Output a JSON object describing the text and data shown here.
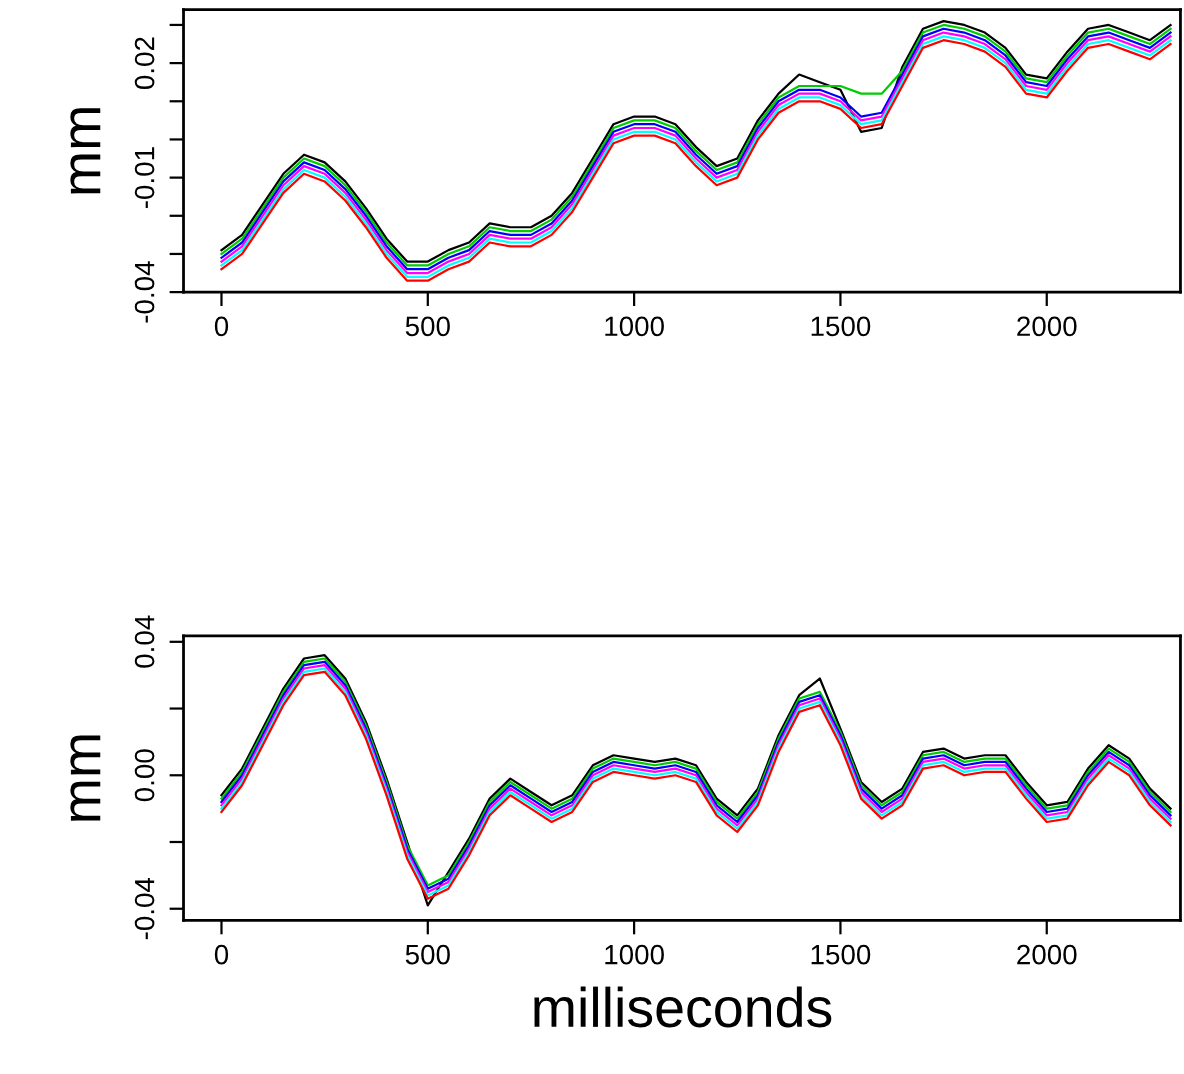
{
  "chart_data": [
    {
      "type": "line",
      "ylabel": "mm",
      "grid": false,
      "marker": "none",
      "line_style": "solid",
      "x": [
        0,
        50,
        100,
        150,
        200,
        250,
        300,
        350,
        400,
        450,
        500,
        550,
        600,
        650,
        700,
        750,
        800,
        850,
        900,
        950,
        1000,
        1050,
        1100,
        1150,
        1200,
        1250,
        1300,
        1350,
        1400,
        1450,
        1500,
        1550,
        1600,
        1650,
        1700,
        1750,
        1800,
        1850,
        1900,
        1950,
        2000,
        2050,
        2100,
        2150,
        2200,
        2250,
        2300
      ],
      "xlim": [
        -92,
        2324
      ],
      "xticks": [
        0,
        500,
        1000,
        1500,
        2000
      ],
      "ylim": [
        -0.04,
        0.034
      ],
      "yticks": [
        {
          "value": -0.04,
          "label": "-0.04"
        },
        {
          "value": -0.03,
          "label": null
        },
        {
          "value": -0.02,
          "label": null
        },
        {
          "value": -0.01,
          "label": "-0.01"
        },
        {
          "value": 0.0,
          "label": null
        },
        {
          "value": 0.01,
          "label": null
        },
        {
          "value": 0.02,
          "label": "0.02"
        },
        {
          "value": 0.03,
          "label": null
        }
      ],
      "series": [
        {
          "color": "#000000",
          "values": [
            -0.029,
            -0.025,
            -0.017,
            -0.009,
            -0.004,
            -0.006,
            -0.011,
            -0.018,
            -0.026,
            -0.032,
            -0.032,
            -0.029,
            -0.027,
            -0.022,
            -0.023,
            -0.023,
            -0.02,
            -0.014,
            -0.005,
            0.004,
            0.006,
            0.006,
            0.004,
            -0.002,
            -0.007,
            -0.005,
            0.005,
            0.012,
            0.017,
            0.015,
            0.013,
            0.002,
            0.003,
            0.019,
            0.029,
            0.031,
            0.03,
            0.028,
            0.024,
            0.017,
            0.016,
            0.023,
            0.029,
            0.03,
            0.028,
            0.026,
            0.03
          ]
        },
        {
          "color": "#00cd00",
          "values": [
            -0.03,
            -0.026,
            -0.018,
            -0.01,
            -0.005,
            -0.007,
            -0.012,
            -0.019,
            -0.027,
            -0.033,
            -0.033,
            -0.03,
            -0.028,
            -0.023,
            -0.024,
            -0.024,
            -0.021,
            -0.015,
            -0.006,
            0.003,
            0.005,
            0.005,
            0.003,
            -0.003,
            -0.008,
            -0.006,
            0.004,
            0.011,
            0.014,
            0.014,
            0.014,
            0.012,
            0.012,
            0.018,
            0.028,
            0.03,
            0.029,
            0.027,
            0.023,
            0.016,
            0.015,
            0.022,
            0.028,
            0.029,
            0.027,
            0.025,
            0.029
          ]
        },
        {
          "color": "#0000ff",
          "values": [
            -0.031,
            -0.027,
            -0.019,
            -0.011,
            -0.006,
            -0.008,
            -0.013,
            -0.02,
            -0.028,
            -0.034,
            -0.034,
            -0.031,
            -0.029,
            -0.024,
            -0.025,
            -0.025,
            -0.022,
            -0.016,
            -0.007,
            0.002,
            0.004,
            0.004,
            0.002,
            -0.004,
            -0.009,
            -0.007,
            0.003,
            0.01,
            0.013,
            0.013,
            0.011,
            0.006,
            0.007,
            0.017,
            0.027,
            0.029,
            0.028,
            0.026,
            0.022,
            0.015,
            0.014,
            0.021,
            0.027,
            0.028,
            0.026,
            0.024,
            0.028
          ]
        },
        {
          "color": "#ff00ff",
          "values": [
            -0.032,
            -0.028,
            -0.02,
            -0.012,
            -0.007,
            -0.009,
            -0.014,
            -0.021,
            -0.029,
            -0.035,
            -0.035,
            -0.032,
            -0.03,
            -0.025,
            -0.026,
            -0.026,
            -0.023,
            -0.017,
            -0.008,
            0.001,
            0.003,
            0.003,
            0.001,
            -0.005,
            -0.01,
            -0.008,
            0.002,
            0.009,
            0.012,
            0.012,
            0.01,
            0.005,
            0.006,
            0.016,
            0.026,
            0.028,
            0.027,
            0.025,
            0.021,
            0.014,
            0.013,
            0.02,
            0.026,
            0.027,
            0.025,
            0.023,
            0.027
          ]
        },
        {
          "color": "#00ffff",
          "values": [
            -0.033,
            -0.029,
            -0.021,
            -0.013,
            -0.008,
            -0.01,
            -0.015,
            -0.022,
            -0.03,
            -0.036,
            -0.036,
            -0.033,
            -0.031,
            -0.026,
            -0.027,
            -0.027,
            -0.024,
            -0.018,
            -0.009,
            0.0,
            0.002,
            0.002,
            0.0,
            -0.006,
            -0.011,
            -0.009,
            0.001,
            0.008,
            0.011,
            0.011,
            0.009,
            0.004,
            0.005,
            0.015,
            0.025,
            0.027,
            0.026,
            0.024,
            0.02,
            0.013,
            0.012,
            0.019,
            0.025,
            0.026,
            0.024,
            0.022,
            0.026
          ]
        },
        {
          "color": "#ff0000",
          "values": [
            -0.034,
            -0.03,
            -0.022,
            -0.014,
            -0.009,
            -0.011,
            -0.016,
            -0.023,
            -0.031,
            -0.037,
            -0.037,
            -0.034,
            -0.032,
            -0.027,
            -0.028,
            -0.028,
            -0.025,
            -0.019,
            -0.01,
            -0.001,
            0.001,
            0.001,
            -0.001,
            -0.007,
            -0.012,
            -0.01,
            0.0,
            0.007,
            0.01,
            0.01,
            0.008,
            0.003,
            0.004,
            0.014,
            0.024,
            0.026,
            0.025,
            0.023,
            0.019,
            0.012,
            0.011,
            0.018,
            0.024,
            0.025,
            0.023,
            0.021,
            0.025
          ]
        }
      ]
    },
    {
      "type": "line",
      "ylabel": "mm",
      "xlabel": "milliseconds",
      "grid": false,
      "marker": "none",
      "line_style": "solid",
      "x": [
        0,
        50,
        100,
        150,
        200,
        250,
        300,
        350,
        400,
        450,
        500,
        550,
        600,
        650,
        700,
        750,
        800,
        850,
        900,
        950,
        1000,
        1050,
        1100,
        1150,
        1200,
        1250,
        1300,
        1350,
        1400,
        1450,
        1500,
        1550,
        1600,
        1650,
        1700,
        1750,
        1800,
        1850,
        1900,
        1950,
        2000,
        2050,
        2100,
        2150,
        2200,
        2250,
        2300
      ],
      "xlim": [
        -92,
        2324
      ],
      "xticks": [
        0,
        500,
        1000,
        1500,
        2000
      ],
      "ylim": [
        -0.0435,
        0.0418
      ],
      "yticks": [
        {
          "value": -0.04,
          "label": "-0.04"
        },
        {
          "value": -0.02,
          "label": null
        },
        {
          "value": 0.0,
          "label": "0.00"
        },
        {
          "value": 0.02,
          "label": null
        },
        {
          "value": 0.04,
          "label": "0.04"
        }
      ],
      "series": [
        {
          "color": "#000000",
          "values": [
            -0.006,
            0.002,
            0.014,
            0.026,
            0.035,
            0.036,
            0.029,
            0.016,
            -0.001,
            -0.02,
            -0.039,
            -0.029,
            -0.019,
            -0.007,
            -0.001,
            -0.005,
            -0.009,
            -0.006,
            0.003,
            0.006,
            0.005,
            0.004,
            0.005,
            0.003,
            -0.007,
            -0.012,
            -0.004,
            0.012,
            0.024,
            0.029,
            0.014,
            -0.002,
            -0.008,
            -0.004,
            0.007,
            0.008,
            0.005,
            0.006,
            0.006,
            -0.002,
            -0.009,
            -0.008,
            0.002,
            0.009,
            0.005,
            -0.004,
            -0.01
          ]
        },
        {
          "color": "#00cd00",
          "values": [
            -0.007,
            0.001,
            0.013,
            0.025,
            0.034,
            0.035,
            0.028,
            0.015,
            -0.002,
            -0.021,
            -0.033,
            -0.03,
            -0.02,
            -0.008,
            -0.002,
            -0.006,
            -0.01,
            -0.007,
            0.002,
            0.005,
            0.004,
            0.003,
            0.004,
            0.002,
            -0.008,
            -0.013,
            -0.005,
            0.011,
            0.023,
            0.025,
            0.013,
            -0.003,
            -0.009,
            -0.005,
            0.006,
            0.007,
            0.004,
            0.005,
            0.005,
            -0.003,
            -0.01,
            -0.009,
            0.001,
            0.008,
            0.004,
            -0.005,
            -0.011
          ]
        },
        {
          "color": "#0000ff",
          "values": [
            -0.008,
            0.0,
            0.012,
            0.024,
            0.033,
            0.034,
            0.027,
            0.014,
            -0.003,
            -0.022,
            -0.034,
            -0.031,
            -0.021,
            -0.009,
            -0.003,
            -0.007,
            -0.011,
            -0.008,
            0.001,
            0.004,
            0.003,
            0.002,
            0.003,
            0.001,
            -0.009,
            -0.014,
            -0.006,
            0.01,
            0.022,
            0.024,
            0.012,
            -0.004,
            -0.01,
            -0.006,
            0.005,
            0.006,
            0.003,
            0.004,
            0.004,
            -0.004,
            -0.011,
            -0.01,
            0.0,
            0.007,
            0.003,
            -0.006,
            -0.012
          ]
        },
        {
          "color": "#ff00ff",
          "values": [
            -0.009,
            -0.001,
            0.011,
            0.023,
            0.032,
            0.033,
            0.026,
            0.013,
            -0.004,
            -0.023,
            -0.035,
            -0.032,
            -0.022,
            -0.01,
            -0.004,
            -0.008,
            -0.012,
            -0.009,
            0.0,
            0.003,
            0.002,
            0.001,
            0.002,
            0.0,
            -0.01,
            -0.015,
            -0.007,
            0.009,
            0.021,
            0.023,
            0.011,
            -0.005,
            -0.011,
            -0.007,
            0.004,
            0.005,
            0.002,
            0.003,
            0.003,
            -0.005,
            -0.012,
            -0.011,
            -0.001,
            0.006,
            0.002,
            -0.007,
            -0.013
          ]
        },
        {
          "color": "#00ffff",
          "values": [
            -0.01,
            -0.002,
            0.01,
            0.022,
            0.031,
            0.032,
            0.025,
            0.012,
            -0.005,
            -0.024,
            -0.036,
            -0.033,
            -0.023,
            -0.011,
            -0.005,
            -0.009,
            -0.013,
            -0.01,
            -0.001,
            0.002,
            0.001,
            0.0,
            0.001,
            -0.001,
            -0.011,
            -0.016,
            -0.008,
            0.008,
            0.02,
            0.022,
            0.01,
            -0.006,
            -0.012,
            -0.008,
            0.003,
            0.004,
            0.001,
            0.002,
            0.002,
            -0.006,
            -0.013,
            -0.012,
            -0.002,
            0.005,
            0.001,
            -0.008,
            -0.014
          ]
        },
        {
          "color": "#ff0000",
          "values": [
            -0.011,
            -0.003,
            0.009,
            0.021,
            0.03,
            0.031,
            0.024,
            0.011,
            -0.006,
            -0.025,
            -0.037,
            -0.034,
            -0.024,
            -0.012,
            -0.006,
            -0.01,
            -0.014,
            -0.011,
            -0.002,
            0.001,
            0.0,
            -0.001,
            0.0,
            -0.002,
            -0.012,
            -0.017,
            -0.009,
            0.007,
            0.019,
            0.021,
            0.009,
            -0.007,
            -0.013,
            -0.009,
            0.002,
            0.003,
            0.0,
            0.001,
            0.001,
            -0.007,
            -0.014,
            -0.013,
            -0.003,
            0.004,
            0.0,
            -0.009,
            -0.015
          ]
        }
      ]
    }
  ]
}
